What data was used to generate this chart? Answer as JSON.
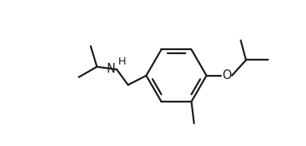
{
  "background": "#ffffff",
  "line_color": "#1a1a1a",
  "line_width": 1.6,
  "font_size_N": 10.5,
  "font_size_H": 9.5,
  "font_size_O": 10.5,
  "figsize": [
    3.78,
    1.81
  ],
  "dpi": 100,
  "label_N": "H",
  "label_O": "O",
  "xlim": [
    -2.3,
    2.5
  ],
  "ylim": [
    -1.5,
    1.3
  ]
}
